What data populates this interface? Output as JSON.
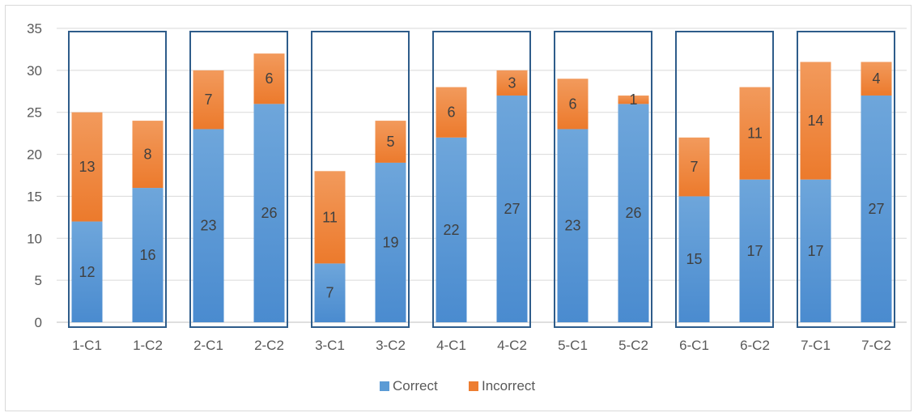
{
  "chart_data": {
    "type": "bar",
    "stacked": true,
    "categories": [
      "1-C1",
      "1-C2",
      "2-C1",
      "2-C2",
      "3-C1",
      "3-C2",
      "4-C1",
      "4-C2",
      "5-C1",
      "5-C2",
      "6-C1",
      "6-C2",
      "7-C1",
      "7-C2"
    ],
    "series": [
      {
        "name": "Correct",
        "color": "#5b9bd5",
        "values": [
          12,
          16,
          23,
          26,
          7,
          19,
          22,
          27,
          23,
          26,
          15,
          17,
          17,
          27
        ]
      },
      {
        "name": "Incorrect",
        "color": "#ed7d31",
        "values": [
          13,
          8,
          7,
          6,
          11,
          5,
          6,
          3,
          6,
          1,
          7,
          11,
          14,
          4
        ]
      }
    ],
    "ylim": [
      0,
      35
    ],
    "yticks": [
      0,
      5,
      10,
      15,
      20,
      25,
      30,
      35
    ],
    "grid": true,
    "legend_position": "bottom",
    "group_boxes": [
      "1",
      "2",
      "3",
      "4",
      "5",
      "6",
      "7"
    ],
    "box_color": "#2e5c8a"
  }
}
